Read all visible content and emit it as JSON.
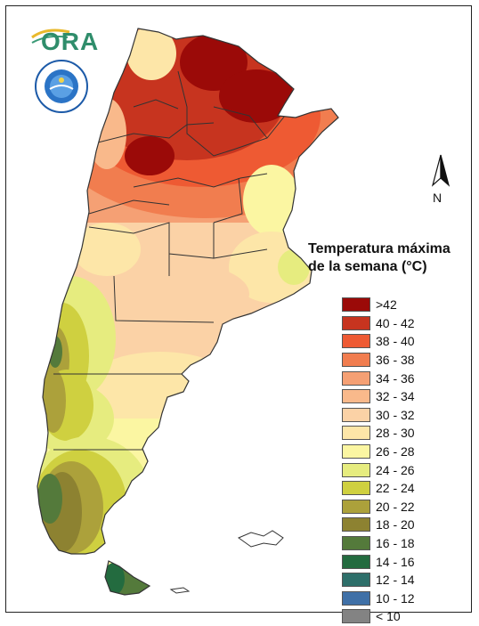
{
  "logos": {
    "ora_text": "ORA",
    "smn_emblem": "smn-emblem"
  },
  "north_arrow": {
    "label": "N"
  },
  "legend": {
    "title_line1": "Temperatura máxima",
    "title_line2": "de la semana (°C)",
    "classes": [
      {
        "label": ">42",
        "color": "#9b0a08"
      },
      {
        "label": "40 - 42",
        "color": "#c7341f"
      },
      {
        "label": "38 - 40",
        "color": "#ee5a33"
      },
      {
        "label": "36 - 38",
        "color": "#f17d4f"
      },
      {
        "label": "34 - 36",
        "color": "#f5a074"
      },
      {
        "label": "32 - 34",
        "color": "#f9b98b"
      },
      {
        "label": "30 - 32",
        "color": "#fbd2a6"
      },
      {
        "label": "28 - 30",
        "color": "#fde6a8"
      },
      {
        "label": "26 - 28",
        "color": "#fbf6a2"
      },
      {
        "label": "24 - 26",
        "color": "#e6ec7f"
      },
      {
        "label": "22 - 24",
        "color": "#cfd040"
      },
      {
        "label": "20 - 22",
        "color": "#aca13b"
      },
      {
        "label": "18 - 20",
        "color": "#8d8231"
      },
      {
        "label": "16 - 18",
        "color": "#547a3b"
      },
      {
        "label": "14 - 16",
        "color": "#236b3f"
      },
      {
        "label": "12 - 14",
        "color": "#2e6f6a"
      },
      {
        "label": "10 - 12",
        "color": "#3f70a7"
      },
      {
        "label": "< 10",
        "color": "#838383"
      }
    ]
  }
}
